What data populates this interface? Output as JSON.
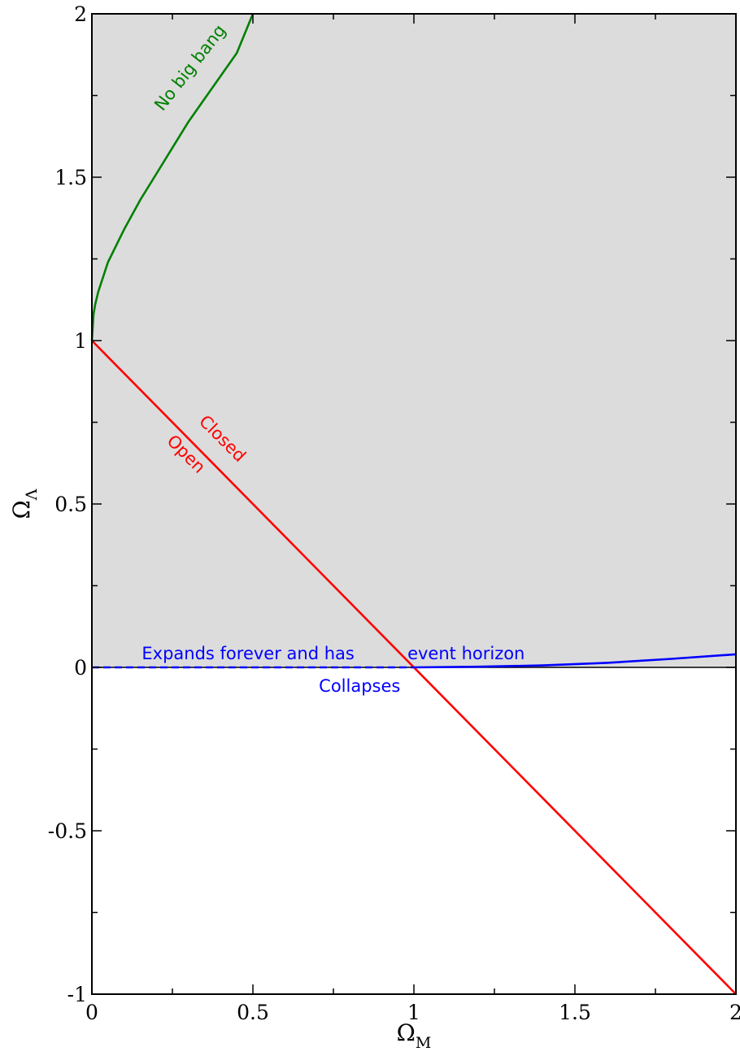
{
  "chart_data": {
    "type": "line",
    "xlabel": {
      "symbol": "Ω",
      "subscript": "M"
    },
    "ylabel": {
      "symbol": "Ω",
      "subscript": "Λ"
    },
    "xlim": [
      0,
      2
    ],
    "ylim": [
      -1,
      2
    ],
    "x_ticks": [
      "0",
      "0.5",
      "1",
      "1.5",
      "2"
    ],
    "y_ticks": [
      "-1",
      "-0.5",
      "0",
      "0.5",
      "1",
      "1.5",
      "2"
    ],
    "grid": false,
    "shaded_region": {
      "description": "Omega_Lambda > 0",
      "color": "#dcdcdc"
    },
    "series": [
      {
        "color": "#008000",
        "style": "solid",
        "x": [
          0,
          0.005,
          0.01,
          0.02,
          0.05,
          0.1,
          0.15,
          0.2,
          0.25,
          0.3,
          0.35,
          0.4,
          0.45,
          0.5
        ],
        "y": [
          1.0,
          1.08,
          1.11,
          1.15,
          1.24,
          1.34,
          1.43,
          1.51,
          1.59,
          1.67,
          1.74,
          1.81,
          1.88,
          2.0
        ]
      },
      {
        "color": "#ff0000",
        "style": "solid",
        "x": [
          0,
          2
        ],
        "y": [
          1,
          -1
        ]
      },
      {
        "color": "#0000ff",
        "style": "dashed",
        "x": [
          0,
          1
        ],
        "y": [
          0,
          0
        ]
      },
      {
        "color": "#0000ff",
        "style": "solid",
        "x": [
          1,
          1.2,
          1.4,
          1.6,
          1.8,
          2.0
        ],
        "y": [
          0,
          0.002,
          0.006,
          0.014,
          0.026,
          0.04
        ]
      }
    ],
    "annotations": [
      {
        "text": "No big bang",
        "color": "#008000",
        "x": 0.22,
        "y": 1.7,
        "angle": -52
      },
      {
        "text": "Closed",
        "color": "#ff0000",
        "x": 0.33,
        "y": 0.75,
        "angle": 45
      },
      {
        "text": "Open",
        "color": "#ff0000",
        "x": 0.23,
        "y": 0.69,
        "angle": 45
      },
      {
        "text": "Expands forever and has",
        "color": "#0000ff",
        "x": 0.155,
        "y": 0.025,
        "angle": 0
      },
      {
        "text": "event horizon",
        "color": "#0000ff",
        "x": 0.98,
        "y": 0.025,
        "angle": 0
      },
      {
        "text": "Collapses",
        "color": "#0000ff",
        "x": 0.705,
        "y": -0.075,
        "angle": 0
      }
    ]
  }
}
